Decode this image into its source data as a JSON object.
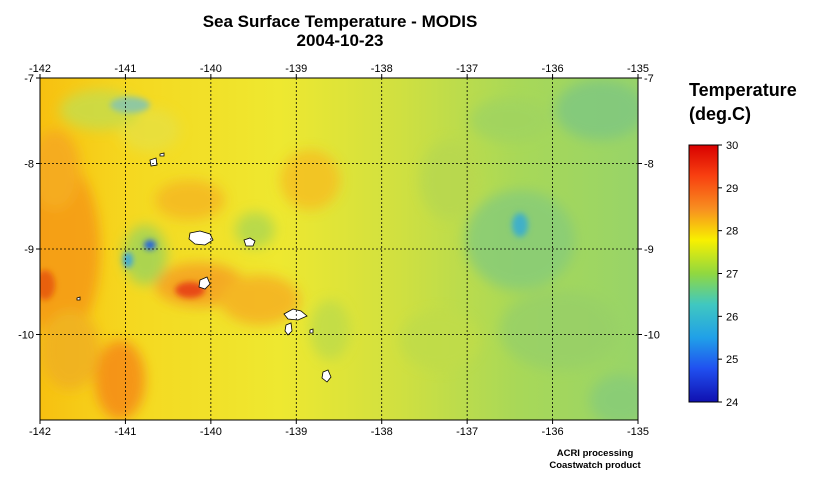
{
  "title": "Sea Surface Temperature - MODIS",
  "date": "2004-10-23",
  "legend": {
    "title_line1": "Temperature",
    "title_line2": "(deg.C)",
    "ticks": [
      "30",
      "29",
      "28",
      "27",
      "26",
      "25",
      "24"
    ],
    "colors": [
      "#d80000",
      "#f84010",
      "#f89020",
      "#f8f000",
      "#90d840",
      "#40c8c0",
      "#20a0e8",
      "#2050f0",
      "#1010b0"
    ]
  },
  "map": {
    "lon_ticks": [
      "-142",
      "-141",
      "-140",
      "-139",
      "-138",
      "-137",
      "-136",
      "-135"
    ],
    "lat_ticks": [
      "-7",
      "-8",
      "-9",
      "-10"
    ],
    "lon_range": [
      -142,
      -135
    ],
    "lat_range": [
      -11,
      -7
    ]
  },
  "credits": {
    "line1": "ACRI processing",
    "line2": "Coastwatch product"
  }
}
